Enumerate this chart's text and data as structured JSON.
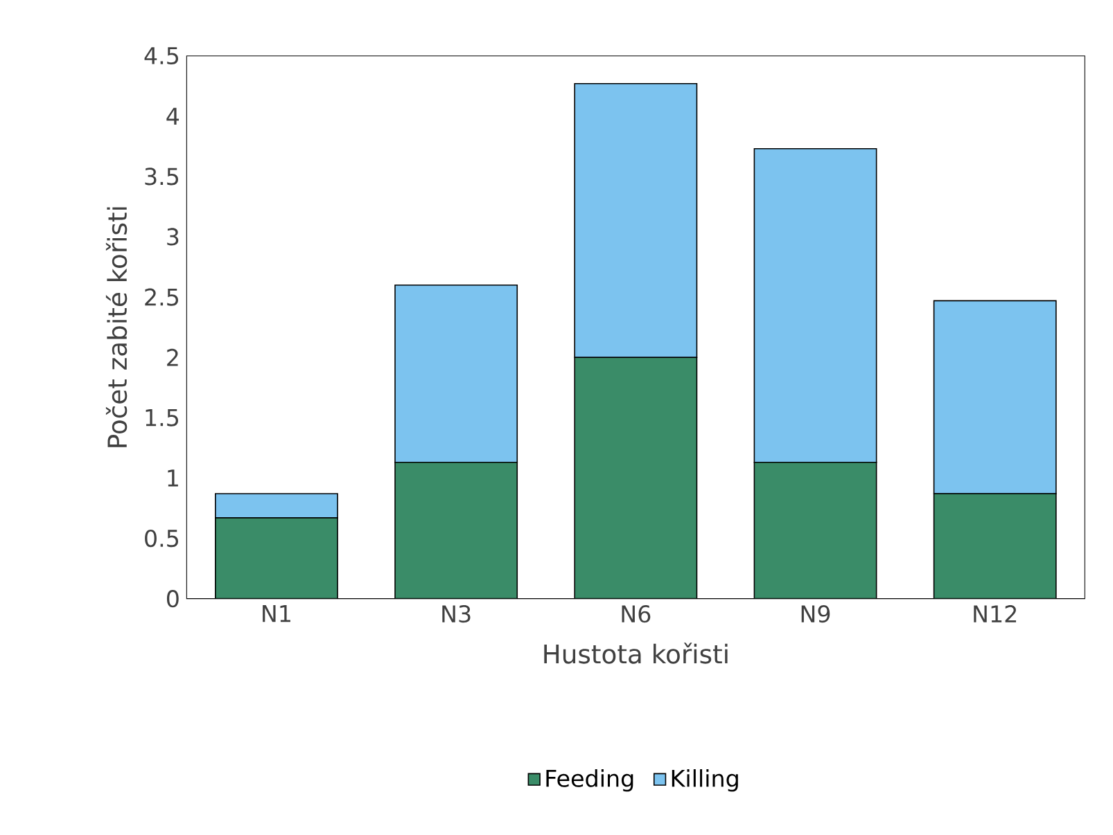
{
  "chart_data": {
    "type": "bar",
    "stacked": true,
    "xlabel": "Hustota kořisti",
    "ylabel": "Počet zabité kořisti",
    "categories": [
      "N1",
      "N3",
      "N6",
      "N9",
      "N12"
    ],
    "series": [
      {
        "name": "Feeding",
        "color": "#3a8c68",
        "values": [
          0.67,
          1.13,
          2.0,
          1.13,
          0.87
        ]
      },
      {
        "name": "Killing",
        "color": "#7cc3ef",
        "values": [
          0.2,
          1.47,
          2.27,
          2.6,
          1.6
        ]
      }
    ],
    "ylim": [
      0,
      4.5
    ],
    "yticks": [
      0,
      0.5,
      1,
      1.5,
      2,
      2.5,
      3,
      3.5,
      4,
      4.5
    ],
    "grid": false,
    "legend": "bottom"
  }
}
